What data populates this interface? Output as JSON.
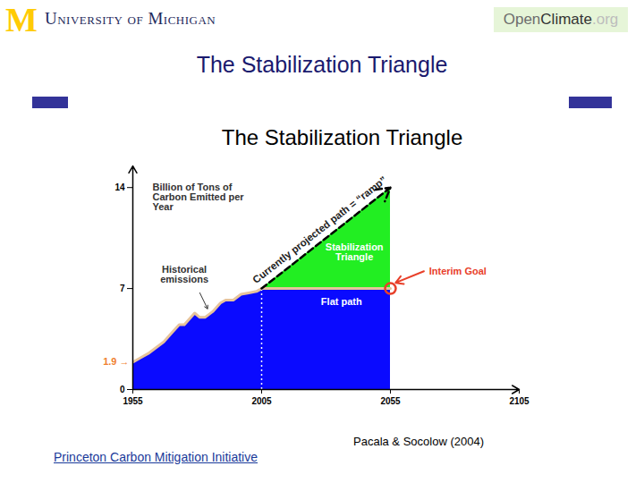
{
  "slide": {
    "logo_mark": "M",
    "logo_text": "University of Michigan",
    "site": [
      "Open",
      "Climate",
      ".org"
    ],
    "title": "The Stabilization Triangle",
    "source": "Pacala & Socolow (2004)",
    "footer_link": "Princeton Carbon Mitigation Initiative"
  },
  "chart_data": {
    "type": "area",
    "title": "The Stabilization Triangle",
    "ylabel": "Billion of Tons of Carbon Emitted per Year",
    "xlim": [
      1955,
      2105
    ],
    "xticks": [
      1955,
      2005,
      2055,
      2105
    ],
    "ylim": [
      0,
      15.5
    ],
    "yticks": [
      0,
      7,
      14
    ],
    "start_value": {
      "value": 1.9,
      "label": "1.9 →",
      "color": "#f07f2f"
    },
    "series": [
      {
        "name": "Historical emissions",
        "type": "area",
        "color": "#0a0aff",
        "x": [
          1955,
          1958,
          1961,
          1964,
          1967,
          1970,
          1973,
          1975,
          1977,
          1979,
          1981,
          1983,
          1986,
          1989,
          1991,
          1994,
          1997,
          2000,
          2003,
          2005
        ],
        "values": [
          1.9,
          2.2,
          2.5,
          2.9,
          3.3,
          3.9,
          4.5,
          4.5,
          4.9,
          5.3,
          5.0,
          5.0,
          5.4,
          6.0,
          6.2,
          6.2,
          6.6,
          6.7,
          6.8,
          7.0
        ]
      },
      {
        "name": "Flat path",
        "type": "area",
        "color": "#0a0aff",
        "x": [
          2005,
          2055
        ],
        "values": [
          7,
          7
        ]
      },
      {
        "name": "Currently projected path = “ramp”",
        "type": "line",
        "color": "#000000",
        "line_style": "dashed",
        "x": [
          2005,
          2055
        ],
        "values": [
          7,
          14
        ]
      }
    ],
    "triangle": {
      "label": "Stabilization Triangle",
      "color": "#22ee22"
    },
    "interim_goal": {
      "label": "Interim Goal",
      "x": 2055,
      "y": 7,
      "color": "#e8402a"
    }
  }
}
